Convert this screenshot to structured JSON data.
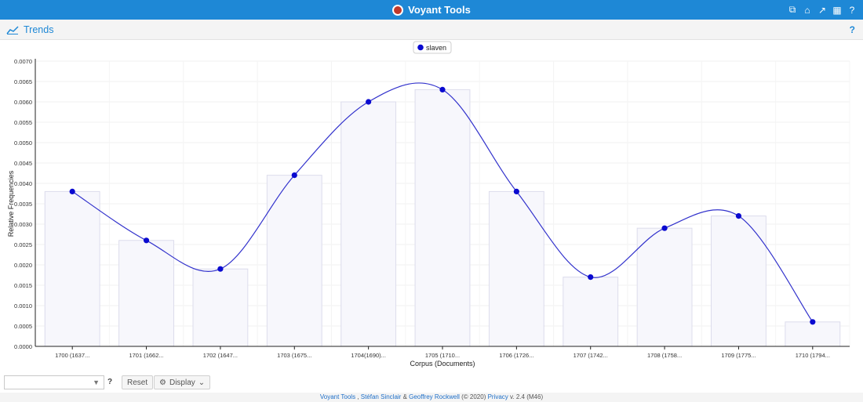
{
  "app": {
    "title": "Voyant Tools"
  },
  "panel": {
    "title": "Trends",
    "help": "?"
  },
  "toolbar": {
    "reset_label": "Reset",
    "display_label": "Display",
    "help": "?"
  },
  "footer": {
    "tools_link": "Voyant Tools",
    "sep1": " , ",
    "author1": "Stéfan Sinclair",
    "amp": " & ",
    "author2": "Geoffrey Rockwell",
    "copyright": " (© 2020) ",
    "privacy": "Privacy",
    "version": " v. 2.4 (M46)"
  },
  "chart_data": {
    "type": "line",
    "title": "",
    "xlabel": "Corpus (Documents)",
    "ylabel": "Relative Frequencies",
    "ylim": [
      0,
      0.007
    ],
    "yticks": [
      "0.0000",
      "0.0005",
      "0.0010",
      "0.0015",
      "0.0020",
      "0.0025",
      "0.0030",
      "0.0035",
      "0.0040",
      "0.0045",
      "0.0050",
      "0.0055",
      "0.0060",
      "0.0065",
      "0.0070"
    ],
    "categories": [
      "1700 (1637...",
      "1701 (1662...",
      "1702 (1647...",
      "1703 (1675...",
      "1704(1690)...",
      "1705 (1710...",
      "1706 (1726...",
      "1707 (1742...",
      "1708 (1758...",
      "1709 (1775...",
      "1710 (1794..."
    ],
    "series": [
      {
        "name": "slaven",
        "values": [
          0.0038,
          0.0026,
          0.0019,
          0.0042,
          0.006,
          0.0063,
          0.0038,
          0.0017,
          0.0029,
          0.0032,
          0.0006
        ]
      }
    ],
    "legend": "top-center",
    "grid": true,
    "colors": {
      "line": "#3232cc",
      "point": "#0a0ad0",
      "bar_fill": "#f7f7fc",
      "bar_stroke": "#dcdcec"
    }
  }
}
